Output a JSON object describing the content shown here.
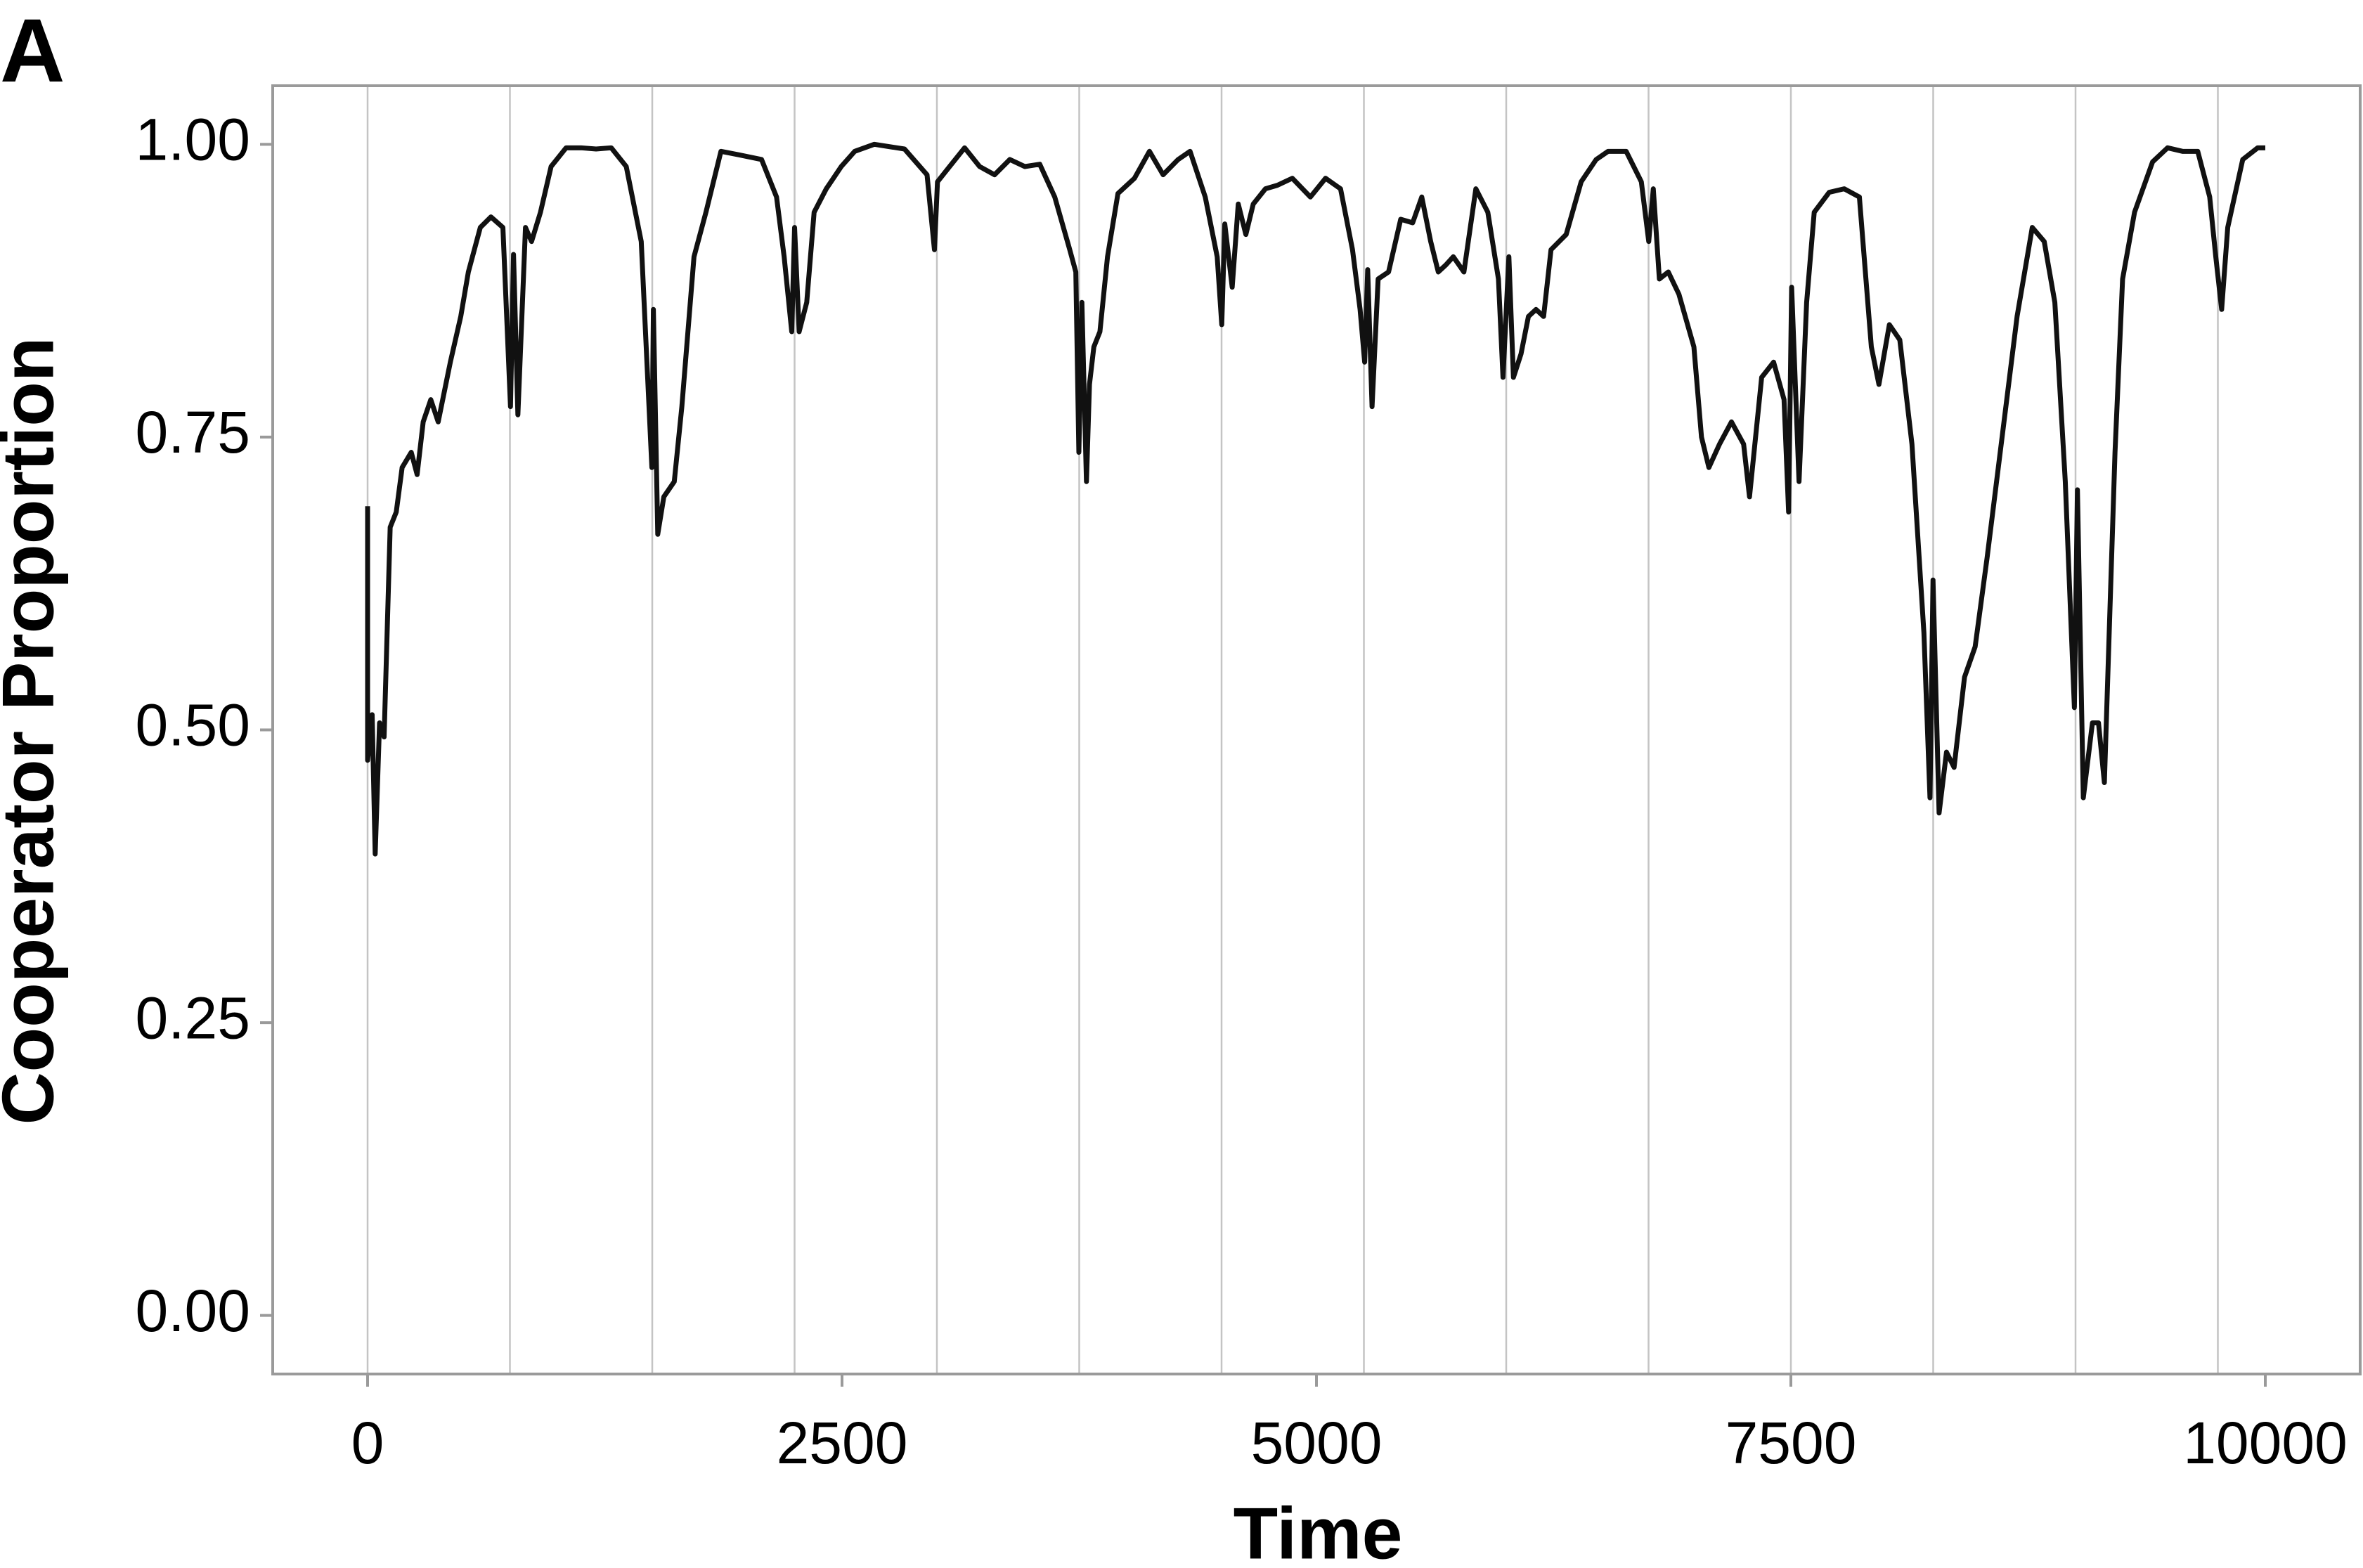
{
  "chart_data": {
    "type": "line",
    "panel_label": "A",
    "xlabel": "Time",
    "ylabel": "Cooperator Proportion",
    "xlim": [
      -500,
      10500
    ],
    "ylim": [
      -0.05,
      1.05
    ],
    "xticks": [
      0,
      2500,
      5000,
      7500,
      10000
    ],
    "yticks": [
      {
        "value": 0,
        "label": "0.00"
      },
      {
        "value": 0.25,
        "label": "0.25"
      },
      {
        "value": 0.5,
        "label": "0.50"
      },
      {
        "value": 0.75,
        "label": "0.75"
      },
      {
        "value": 1,
        "label": "1.00"
      }
    ],
    "vlines": [
      0,
      750,
      1500,
      2250,
      3000,
      3750,
      4500,
      5250,
      6000,
      6750,
      7500,
      8250,
      9000,
      9750
    ],
    "color": "#111111",
    "x": [
      0,
      0,
      24,
      40,
      63,
      87,
      119,
      151,
      182,
      230,
      261,
      293,
      333,
      372,
      436,
      491,
      531,
      594,
      650,
      713,
      753,
      769,
      792,
      832,
      864,
      911,
      967,
      1046,
      1125,
      1204,
      1284,
      1363,
      1442,
      1498,
      1506,
      1529,
      1561,
      1616,
      1656,
      1720,
      1783,
      1862,
      1957,
      2076,
      2155,
      2195,
      2235,
      2250,
      2274,
      2314,
      2353,
      2417,
      2496,
      2567,
      2670,
      2829,
      2948,
      2987,
      3003,
      3067,
      3146,
      3225,
      3304,
      3384,
      3463,
      3542,
      3621,
      3700,
      3732,
      3748,
      3764,
      3788,
      3804,
      3827,
      3859,
      3899,
      3954,
      4041,
      4120,
      4192,
      4271,
      4334,
      4414,
      4477,
      4501,
      4517,
      4556,
      4588,
      4628,
      4667,
      4731,
      4794,
      4873,
      4968,
      5048,
      5127,
      5190,
      5230,
      5254,
      5270,
      5293,
      5325,
      5380,
      5444,
      5507,
      5555,
      5602,
      5642,
      5682,
      5721,
      5777,
      5840,
      5903,
      5959,
      5983,
      6014,
      6038,
      6078,
      6117,
      6157,
      6197,
      6236,
      6316,
      6395,
      6474,
      6537,
      6632,
      6712,
      6751,
      6775,
      6807,
      6854,
      6910,
      6989,
      7029,
      7068,
      7124,
      7187,
      7251,
      7282,
      7346,
      7409,
      7464,
      7488,
      7504,
      7543,
      7583,
      7623,
      7702,
      7781,
      7861,
      7924,
      7964,
      8019,
      8074,
      8138,
      8201,
      8233,
      8249,
      8281,
      8320,
      8360,
      8415,
      8471,
      8534,
      8613,
      8692,
      8772,
      8835,
      8891,
      8946,
      8994,
      9010,
      9041,
      9089,
      9121,
      9152,
      9208,
      9248,
      9311,
      9406,
      9485,
      9564,
      9644,
      9707,
      9739,
      9770,
      9802,
      9881,
      9960,
      10000
    ],
    "values": [
      0.691,
      0.474,
      0.513,
      0.394,
      0.506,
      0.494,
      0.673,
      0.686,
      0.724,
      0.737,
      0.718,
      0.763,
      0.782,
      0.763,
      0.814,
      0.853,
      0.891,
      0.929,
      0.938,
      0.929,
      0.776,
      0.906,
      0.769,
      0.929,
      0.917,
      0.942,
      0.981,
      0.997,
      0.997,
      0.996,
      0.997,
      0.981,
      0.917,
      0.724,
      0.859,
      0.667,
      0.699,
      0.712,
      0.776,
      0.904,
      0.942,
      0.994,
      0.991,
      0.987,
      0.955,
      0.904,
      0.84,
      0.929,
      0.84,
      0.865,
      0.942,
      0.962,
      0.981,
      0.994,
      1.0,
      0.996,
      0.974,
      0.91,
      0.968,
      0.981,
      0.997,
      0.981,
      0.974,
      0.987,
      0.981,
      0.983,
      0.955,
      0.91,
      0.891,
      0.737,
      0.865,
      0.712,
      0.795,
      0.827,
      0.84,
      0.904,
      0.958,
      0.971,
      0.994,
      0.974,
      0.987,
      0.994,
      0.955,
      0.904,
      0.846,
      0.932,
      0.878,
      0.949,
      0.923,
      0.949,
      0.962,
      0.965,
      0.971,
      0.955,
      0.971,
      0.962,
      0.91,
      0.859,
      0.814,
      0.893,
      0.776,
      0.885,
      0.891,
      0.936,
      0.933,
      0.955,
      0.917,
      0.891,
      0.897,
      0.904,
      0.891,
      0.962,
      0.942,
      0.885,
      0.801,
      0.904,
      0.801,
      0.821,
      0.853,
      0.859,
      0.853,
      0.91,
      0.923,
      0.968,
      0.987,
      0.994,
      0.994,
      0.968,
      0.917,
      0.962,
      0.885,
      0.891,
      0.872,
      0.827,
      0.75,
      0.724,
      0.744,
      0.763,
      0.744,
      0.699,
      0.801,
      0.814,
      0.782,
      0.686,
      0.878,
      0.712,
      0.865,
      0.942,
      0.959,
      0.962,
      0.955,
      0.827,
      0.795,
      0.846,
      0.833,
      0.744,
      0.583,
      0.442,
      0.628,
      0.429,
      0.481,
      0.468,
      0.545,
      0.571,
      0.647,
      0.75,
      0.853,
      0.929,
      0.917,
      0.865,
      0.712,
      0.519,
      0.705,
      0.442,
      0.506,
      0.506,
      0.455,
      0.737,
      0.885,
      0.942,
      0.985,
      0.997,
      0.994,
      0.994,
      0.955,
      0.904,
      0.859,
      0.929,
      0.987,
      0.997,
      0.997
    ]
  }
}
